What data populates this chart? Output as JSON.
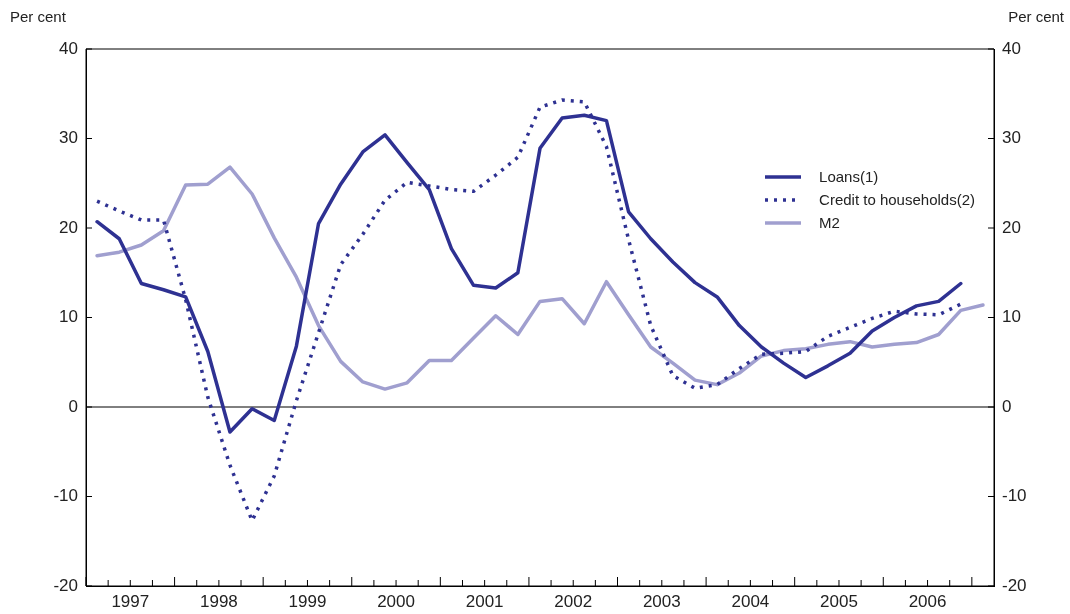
{
  "chart_data": {
    "type": "line",
    "ylabel": "Per cent",
    "y2label": "Per cent",
    "marker": "none",
    "legend": "right",
    "x": [
      1997.125,
      1997.375,
      1997.625,
      1997.875,
      1998.125,
      1998.375,
      1998.625,
      1998.875,
      1999.125,
      1999.375,
      1999.625,
      1999.875,
      2000.125,
      2000.375,
      2000.625,
      2000.875,
      2001.125,
      2001.375,
      2001.625,
      2001.875,
      2002.125,
      2002.375,
      2002.625,
      2002.875,
      2003.125,
      2003.375,
      2003.625,
      2003.875,
      2004.125,
      2004.375,
      2004.625,
      2004.875,
      2005.125,
      2005.375,
      2005.625,
      2005.875,
      2006.125,
      2006.375,
      2006.625,
      2006.875,
      2007.125
    ],
    "xlim": [
      1997,
      2007.25
    ],
    "xticks": [
      {
        "value": 1997,
        "label": null
      },
      {
        "value": 1997.25,
        "label": null
      },
      {
        "value": 1997.5,
        "label": "1997"
      },
      {
        "value": 1997.75,
        "label": null
      },
      {
        "value": 1998,
        "label": null
      },
      {
        "value": 1998.25,
        "label": null
      },
      {
        "value": 1998.5,
        "label": "1998"
      },
      {
        "value": 1998.75,
        "label": null
      },
      {
        "value": 1999,
        "label": null
      },
      {
        "value": 1999.25,
        "label": null
      },
      {
        "value": 1999.5,
        "label": "1999"
      },
      {
        "value": 1999.75,
        "label": null
      },
      {
        "value": 2000,
        "label": null
      },
      {
        "value": 2000.25,
        "label": null
      },
      {
        "value": 2000.5,
        "label": "2000"
      },
      {
        "value": 2000.75,
        "label": null
      },
      {
        "value": 2001,
        "label": null
      },
      {
        "value": 2001.25,
        "label": null
      },
      {
        "value": 2001.5,
        "label": "2001"
      },
      {
        "value": 2001.75,
        "label": null
      },
      {
        "value": 2002,
        "label": null
      },
      {
        "value": 2002.25,
        "label": null
      },
      {
        "value": 2002.5,
        "label": "2002"
      },
      {
        "value": 2002.75,
        "label": null
      },
      {
        "value": 2003,
        "label": null
      },
      {
        "value": 2003.25,
        "label": null
      },
      {
        "value": 2003.5,
        "label": "2003"
      },
      {
        "value": 2003.75,
        "label": null
      },
      {
        "value": 2004,
        "label": null
      },
      {
        "value": 2004.25,
        "label": null
      },
      {
        "value": 2004.5,
        "label": "2004"
      },
      {
        "value": 2004.75,
        "label": null
      },
      {
        "value": 2005,
        "label": null
      },
      {
        "value": 2005.25,
        "label": null
      },
      {
        "value": 2005.5,
        "label": "2005"
      },
      {
        "value": 2005.75,
        "label": null
      },
      {
        "value": 2006,
        "label": null
      },
      {
        "value": 2006.25,
        "label": null
      },
      {
        "value": 2006.5,
        "label": "2006"
      },
      {
        "value": 2006.75,
        "label": null
      },
      {
        "value": 2007,
        "label": null
      }
    ],
    "ylim": [
      -20,
      40
    ],
    "yticks": [
      -20,
      -10,
      0,
      10,
      20,
      30,
      40
    ],
    "y2lim": [
      -20,
      40
    ],
    "y2ticks": [
      -20,
      -10,
      0,
      10,
      20,
      30,
      40
    ],
    "ref_lines": [
      {
        "axis": "y",
        "value": 0,
        "color": "#000000"
      }
    ],
    "series": [
      {
        "name": "Loans(1)",
        "color": "#2e3192",
        "line_style": "solid",
        "values": [
          20.7,
          18.8,
          13.8,
          13.1,
          12.3,
          6.2,
          -2.8,
          -0.2,
          -1.5,
          6.8,
          20.5,
          24.9,
          28.5,
          30.4,
          27.3,
          24.3,
          17.7,
          13.6,
          13.3,
          15.0,
          28.9,
          32.3,
          32.6,
          32.0,
          21.8,
          18.8,
          16.2,
          13.9,
          12.3,
          9.1,
          6.7,
          4.9,
          3.3,
          4.6,
          6.0,
          8.5,
          10.0,
          11.3,
          11.8,
          13.8,
          null
        ]
      },
      {
        "name": "Credit to households(2)",
        "color": "#2e3192",
        "line_style": "dotted",
        "values": [
          23.0,
          21.9,
          20.9,
          20.9,
          12.0,
          1.1,
          -6.5,
          -12.7,
          -7.7,
          0.7,
          8.3,
          15.9,
          19.3,
          23.1,
          25.1,
          24.7,
          24.3,
          24.1,
          25.9,
          27.9,
          33.5,
          34.3,
          34.1,
          29.1,
          18.7,
          9.1,
          3.5,
          2.1,
          2.5,
          4.3,
          5.9,
          6.0,
          6.2,
          7.9,
          8.9,
          9.9,
          10.7,
          10.4,
          10.3,
          11.5,
          null
        ]
      },
      {
        "name": "M2",
        "color": "#a09fcf",
        "line_style": "solid",
        "values": [
          16.9,
          17.3,
          18.1,
          19.7,
          24.8,
          24.9,
          26.8,
          23.8,
          18.9,
          14.5,
          9.1,
          5.1,
          2.8,
          2.0,
          2.7,
          5.2,
          5.2,
          7.7,
          10.2,
          8.1,
          11.8,
          12.1,
          9.3,
          14.0,
          10.3,
          6.7,
          4.9,
          3.0,
          2.5,
          3.8,
          5.7,
          6.3,
          6.5,
          7.0,
          7.3,
          6.7,
          7.0,
          7.2,
          8.1,
          10.8,
          11.4
        ]
      }
    ]
  }
}
